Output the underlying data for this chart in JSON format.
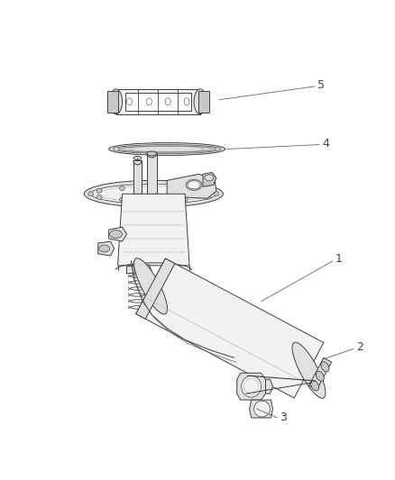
{
  "bg_color": "#ffffff",
  "line_color": "#404040",
  "fill_light": "#f2f2f2",
  "fill_mid": "#e0e0e0",
  "fill_dark": "#c8c8c8",
  "label_fontsize": 9,
  "figsize": [
    4.38,
    5.33
  ],
  "dpi": 100
}
